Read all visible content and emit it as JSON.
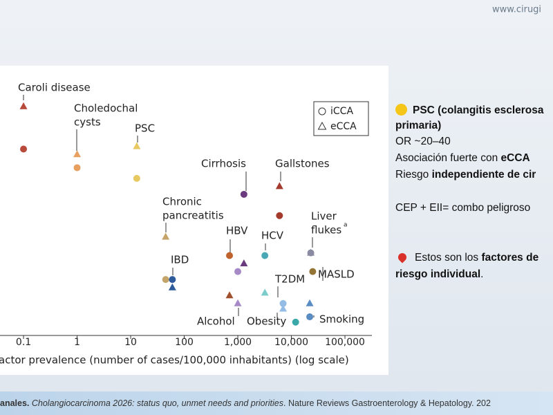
{
  "header": {
    "site": "www.cirugi"
  },
  "chart_data": {
    "type": "scatter",
    "x_label": "actor prevalence (number of cases/100,000 inhabitants) (log scale)",
    "xscale": "log",
    "xlim": [
      0.04,
      300000
    ],
    "xticks": [
      0.1,
      1,
      10,
      100,
      {
        "value": 1000,
        "label": "1,000"
      },
      {
        "value": 10000,
        "label": "10,000"
      },
      {
        "value": 100000,
        "label": "100,000"
      }
    ],
    "ylim": [
      0,
      100
    ],
    "series": [
      {
        "name": "iCCA",
        "marker": "circle",
        "x": [
          0.1,
          1,
          13,
          1300,
          6000,
          23000,
          700,
          3200,
          45,
          60,
          1000,
          7000,
          25000,
          12000,
          22000
        ],
        "values": [
          70,
          63,
          59,
          53,
          45,
          31,
          30,
          30,
          21,
          21,
          24,
          12,
          24,
          5,
          7
        ],
        "colors": [
          "#b84a3c",
          "#e8a060",
          "#e8c860",
          "#6b3a7e",
          "#a33a2c",
          "#8a8aa2",
          "#c0622c",
          "#4aa8b4",
          "#c4a468",
          "#2d5b9c",
          "#a68ac8",
          "#94bce4",
          "#947434",
          "#3aa8a8",
          "#5a8cc4"
        ]
      },
      {
        "name": "eCCA",
        "marker": "triangle",
        "x": [
          0.1,
          1,
          13,
          6000,
          45,
          23000,
          1300,
          700,
          3200,
          60,
          1000,
          7000,
          22000
        ],
        "values": [
          86,
          68,
          71,
          56,
          37,
          31,
          27,
          15,
          16,
          18,
          12,
          10,
          12
        ],
        "colors": [
          "#b84a3c",
          "#e8a060",
          "#e8c860",
          "#a33a2c",
          "#c4a468",
          "#8a8aa2",
          "#6b3a7e",
          "#a0502c",
          "#7ccccc",
          "#2d5b9c",
          "#a68ac8",
          "#94bce4",
          "#5a8cc4"
        ]
      }
    ],
    "annotations": [
      "Caroli disease",
      "Choledochal",
      "cysts",
      "PSC",
      "Cirrhosis",
      "Gallstones",
      "Chronic",
      "pancreatitis",
      "Liver",
      "flukes",
      "a",
      "HBV",
      "HCV",
      "IBD",
      "T2DM",
      "MASLD",
      "Alcohol",
      "Obesity",
      "Smoking"
    ]
  },
  "notes": [
    [
      {
        "text": "PSC (colangitis esclerosa",
        "bold": true
      }
    ],
    [
      {
        "text": "primaria)",
        "bold": true
      }
    ],
    [
      {
        "text": "OR ~20–40",
        "bold": false
      }
    ],
    [
      {
        "text": "Asociación fuerte con ",
        "bold": false
      },
      {
        "text": "eCCA",
        "bold": true
      }
    ],
    [
      {
        "text": "Riesgo ",
        "bold": false
      },
      {
        "text": "independiente de cir",
        "bold": true
      }
    ],
    [
      {
        "text": "CEP + EII= combo peligroso",
        "bold": false
      }
    ],
    [
      {
        "text": "Estos son los ",
        "bold": false
      },
      {
        "text": "factores de",
        "bold": true
      }
    ],
    [
      {
        "text": "riesgo individual",
        "bold": true
      },
      {
        "text": ".",
        "bold": false
      }
    ]
  ],
  "footer": [
    {
      "text": "anales. ",
      "style": "bold"
    },
    {
      "text": "Cholangiocarcinoma 2026: status quo, unmet needs and priorities",
      "style": "italic"
    },
    {
      "text": ". Nature Reviews Gastroenterology & Hepatology. 202",
      "style": "normal"
    }
  ]
}
